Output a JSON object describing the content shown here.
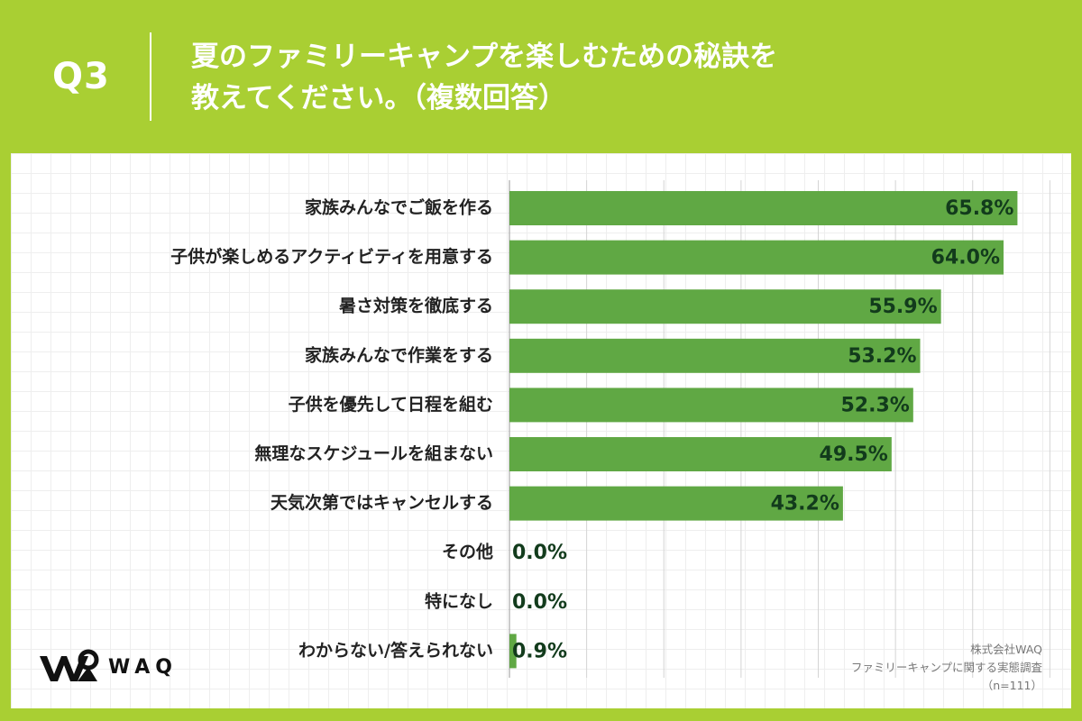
{
  "header": {
    "question_number": "Q3",
    "title_line1": "夏のファミリーキャンプを楽しむための秘訣を",
    "title_line2": "教えてください。（複数回答）"
  },
  "chart_data": {
    "type": "bar",
    "orientation": "horizontal",
    "title": "夏のファミリーキャンプを楽しむための秘訣を教えてください。（複数回答）",
    "categories": [
      "家族みんなでご飯を作る",
      "子供が楽しめるアクティビティを用意する",
      "暑さ対策を徹底する",
      "家族みんなで作業をする",
      "子供を優先して日程を組む",
      "無理なスケジュールを組まない",
      "天気次第ではキャンセルする",
      "その他",
      "特になし",
      "わからない/答えられない"
    ],
    "values": [
      65.8,
      64.0,
      55.9,
      53.2,
      52.3,
      49.5,
      43.2,
      0.0,
      0.0,
      0.9
    ],
    "value_labels": [
      "65.8%",
      "64.0%",
      "55.9%",
      "53.2%",
      "52.3%",
      "49.5%",
      "43.2%",
      "0.0%",
      "0.0%",
      "0.9%"
    ],
    "xlim": [
      0,
      80
    ],
    "grid": true,
    "xlabel": "",
    "ylabel": "",
    "bar_color": "#60a844"
  },
  "logo": {
    "text": "WAQ"
  },
  "source": {
    "company": "株式会社WAQ",
    "survey": "ファミリーキャンプに関する実態調査",
    "sample": "（n=111）"
  },
  "colors": {
    "background": "#a9cf33",
    "panel": "#ffffff",
    "bar": "#60a844",
    "value_text": "#123b1c"
  }
}
